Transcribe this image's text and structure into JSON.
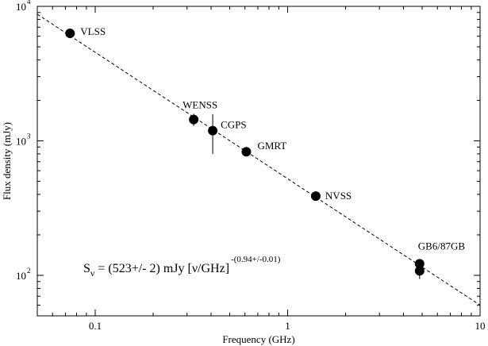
{
  "chart_data": {
    "type": "scatter",
    "xscale": "log",
    "yscale": "log",
    "xlim": [
      0.05,
      10
    ],
    "ylim": [
      50,
      10000
    ],
    "xlabel": "Frequency  (GHz)",
    "ylabel": "Flux density  (mJy)",
    "x_ticks": [
      {
        "value": 0.1,
        "label": "0.1"
      },
      {
        "value": 1,
        "label": "1"
      },
      {
        "value": 10,
        "label": "10"
      }
    ],
    "y_ticks": [
      {
        "value": 100,
        "base": "10",
        "exp": "2"
      },
      {
        "value": 1000,
        "base": "10",
        "exp": "3"
      },
      {
        "value": 10000,
        "base": "10",
        "exp": "4"
      }
    ],
    "points": [
      {
        "label": "VLSS",
        "x": 0.074,
        "y": 6300,
        "err": 500
      },
      {
        "label": "WENSS",
        "x": 0.325,
        "y": 1440,
        "err": 150
      },
      {
        "label": "CGPS",
        "x": 0.408,
        "y": 1190,
        "err": 390
      },
      {
        "label": "GMRT",
        "x": 0.61,
        "y": 830,
        "err": 40
      },
      {
        "label": "NVSS",
        "x": 1.4,
        "y": 388,
        "err": 15
      },
      {
        "label": "GB6/87GB",
        "x": 4.85,
        "y": 122,
        "err": 10
      },
      {
        "label": "",
        "x": 4.85,
        "y": 108,
        "err": 14
      }
    ],
    "fit": {
      "amplitude": 523,
      "index": -0.94,
      "style": "dashed",
      "formula": {
        "s": "S",
        "nu": "ν",
        "middle": " = (523+/- 2) mJy [ν/GHz]",
        "exponent": "-(0.94+/-0.01)"
      }
    },
    "grid": false,
    "legend": "none"
  }
}
